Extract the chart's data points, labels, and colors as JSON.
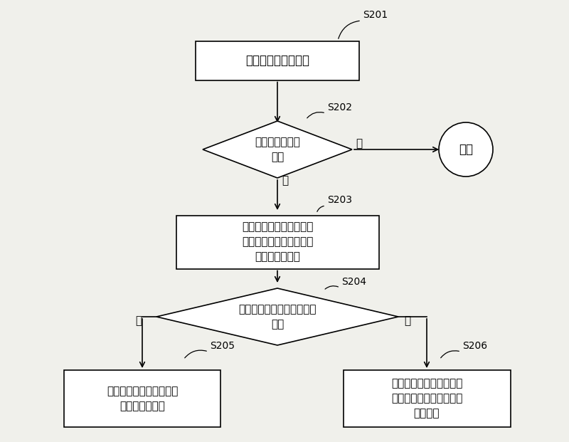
{
  "bg_color": "#f0f0eb",
  "box_color": "#ffffff",
  "box_edge_color": "#000000",
  "text_color": "#000000",
  "s201_text": "计算来电的呼叫时长",
  "s202_text": "来电是否是陌生\n来电",
  "s203_text": "将陌生来电的呼叫时长与\n预先设置的呼叫阈值进行\n时间长度的比对",
  "s204_text": "呼叫时长是否小于等于呼叫\n阈值",
  "s205_text": "将陌生来电设置为非法来\n电，拖入黑名单",
  "s206_text": "对陌生来电号码进行着色\n提醒处理，并执行相应的\n激活处理",
  "end_text": "结束",
  "yes1": "是",
  "no1": "否",
  "yes2": "是",
  "no2": "否",
  "label_S201": "S201",
  "label_S202": "S202",
  "label_S203": "S203",
  "label_S204": "S204",
  "label_S205": "S205",
  "label_S206": "S206",
  "figsize": [
    8.0,
    6.21
  ],
  "dpi": 100
}
